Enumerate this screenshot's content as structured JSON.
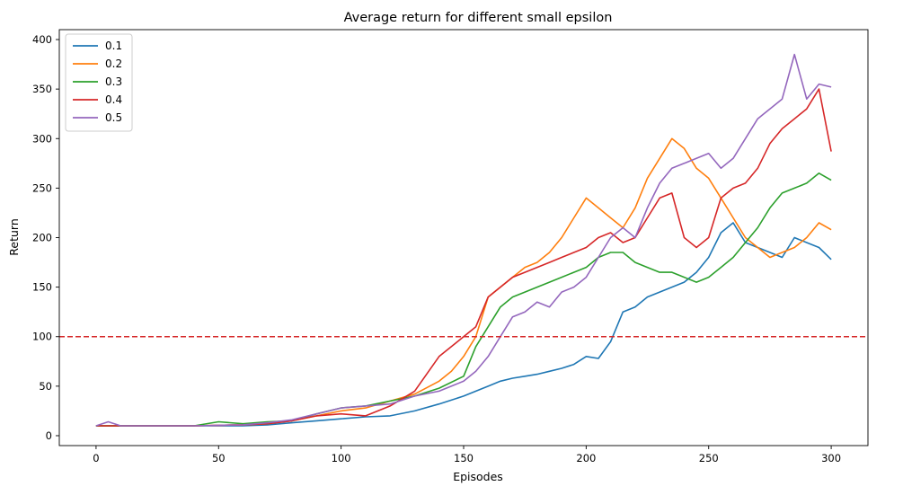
{
  "chart_data": {
    "type": "line",
    "title": "Average return for different small epsilon",
    "xlabel": "Episodes",
    "ylabel": "Return",
    "xlim": [
      -15,
      315
    ],
    "ylim": [
      -10,
      410
    ],
    "xticks": [
      0,
      50,
      100,
      150,
      200,
      250,
      300
    ],
    "yticks": [
      0,
      50,
      100,
      150,
      200,
      250,
      300,
      350,
      400
    ],
    "grid": false,
    "legend_position": "top-left",
    "reference_line": {
      "y": 100,
      "color": "#d62728",
      "style": "dashed"
    },
    "series": [
      {
        "name": "0.1",
        "color": "#1f77b4",
        "x": [
          0,
          20,
          40,
          60,
          70,
          80,
          90,
          100,
          110,
          120,
          130,
          140,
          150,
          155,
          160,
          165,
          170,
          175,
          180,
          185,
          190,
          195,
          200,
          205,
          210,
          215,
          220,
          225,
          230,
          235,
          240,
          245,
          250,
          255,
          260,
          265,
          270,
          275,
          280,
          285,
          290,
          295,
          300
        ],
        "y": [
          10,
          10,
          10,
          10,
          11,
          13,
          15,
          17,
          19,
          20,
          25,
          32,
          40,
          45,
          50,
          55,
          58,
          60,
          62,
          65,
          68,
          72,
          80,
          78,
          95,
          125,
          130,
          140,
          145,
          150,
          155,
          165,
          180,
          205,
          215,
          195,
          190,
          185,
          180,
          200,
          195,
          190,
          178
        ]
      },
      {
        "name": "0.2",
        "color": "#ff7f0e",
        "x": [
          0,
          20,
          40,
          60,
          70,
          80,
          90,
          100,
          110,
          120,
          130,
          140,
          145,
          150,
          155,
          160,
          165,
          170,
          175,
          180,
          185,
          190,
          195,
          200,
          205,
          210,
          215,
          220,
          225,
          230,
          235,
          240,
          245,
          250,
          255,
          260,
          265,
          270,
          275,
          280,
          285,
          290,
          295,
          300
        ],
        "y": [
          10,
          10,
          10,
          11,
          12,
          15,
          20,
          25,
          28,
          35,
          42,
          55,
          65,
          80,
          100,
          140,
          150,
          160,
          170,
          175,
          185,
          200,
          220,
          240,
          230,
          220,
          210,
          230,
          260,
          280,
          300,
          290,
          270,
          260,
          240,
          220,
          200,
          190,
          180,
          185,
          190,
          200,
          215,
          208
        ]
      },
      {
        "name": "0.3",
        "color": "#2ca02c",
        "x": [
          0,
          20,
          40,
          50,
          60,
          70,
          80,
          90,
          100,
          110,
          120,
          130,
          140,
          150,
          155,
          160,
          165,
          170,
          175,
          180,
          185,
          190,
          195,
          200,
          205,
          210,
          215,
          220,
          225,
          230,
          235,
          240,
          245,
          250,
          255,
          260,
          265,
          270,
          275,
          280,
          285,
          290,
          295,
          300
        ],
        "y": [
          10,
          10,
          10,
          14,
          12,
          14,
          15,
          22,
          28,
          30,
          35,
          40,
          48,
          60,
          90,
          110,
          130,
          140,
          145,
          150,
          155,
          160,
          165,
          170,
          180,
          185,
          185,
          175,
          170,
          165,
          165,
          160,
          155,
          160,
          170,
          180,
          195,
          210,
          230,
          245,
          250,
          255,
          265,
          258
        ]
      },
      {
        "name": "0.4",
        "color": "#d62728",
        "x": [
          0,
          20,
          40,
          60,
          70,
          80,
          90,
          100,
          110,
          120,
          130,
          140,
          145,
          150,
          155,
          160,
          165,
          170,
          175,
          180,
          185,
          190,
          195,
          200,
          205,
          210,
          215,
          220,
          225,
          230,
          235,
          240,
          245,
          250,
          255,
          260,
          265,
          270,
          275,
          280,
          285,
          290,
          295,
          300
        ],
        "y": [
          10,
          10,
          10,
          11,
          12,
          15,
          20,
          22,
          20,
          30,
          45,
          80,
          90,
          100,
          110,
          140,
          150,
          160,
          165,
          170,
          175,
          180,
          185,
          190,
          200,
          205,
          195,
          200,
          220,
          240,
          245,
          200,
          190,
          200,
          240,
          250,
          255,
          270,
          295,
          310,
          320,
          330,
          350,
          287
        ]
      },
      {
        "name": "0.5",
        "color": "#9467bd",
        "x": [
          0,
          5,
          10,
          20,
          40,
          60,
          70,
          80,
          90,
          100,
          110,
          120,
          130,
          140,
          150,
          155,
          160,
          165,
          170,
          175,
          180,
          185,
          190,
          195,
          200,
          205,
          210,
          215,
          220,
          225,
          230,
          235,
          240,
          245,
          250,
          255,
          260,
          265,
          270,
          275,
          280,
          285,
          290,
          295,
          300
        ],
        "y": [
          10,
          14,
          10,
          10,
          10,
          11,
          13,
          16,
          22,
          28,
          30,
          32,
          40,
          45,
          55,
          65,
          80,
          100,
          120,
          125,
          135,
          130,
          145,
          150,
          160,
          180,
          200,
          210,
          200,
          230,
          255,
          270,
          275,
          280,
          285,
          270,
          280,
          300,
          320,
          330,
          340,
          385,
          340,
          355,
          352
        ]
      }
    ]
  }
}
